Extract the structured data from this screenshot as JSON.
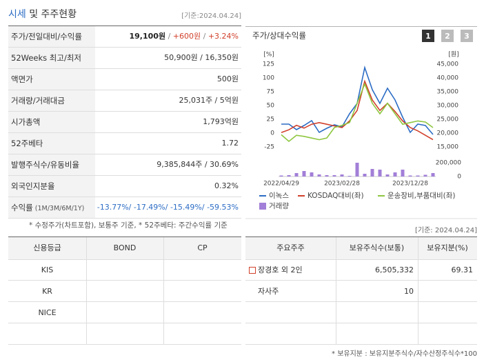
{
  "header": {
    "title_highlight": "시세",
    "title_rest": "및 주주현황",
    "date": "[기준:2024.04.24]"
  },
  "price_table": {
    "rows": [
      {
        "label": "주가/전일대비/수익률",
        "value_parts": [
          "19,100원",
          " / ",
          "+600원",
          " / ",
          "+3.24%"
        ]
      },
      {
        "label": "52Weeks 최고/최저",
        "value": "50,900원 / 16,350원"
      },
      {
        "label": "액면가",
        "value": "500원"
      },
      {
        "label": "거래량/거래대금",
        "value": "25,031주 / 5억원"
      },
      {
        "label": "시가총액",
        "value": "1,793억원"
      },
      {
        "label": "52주베타",
        "value": "1.72"
      },
      {
        "label": "발행주식수/유동비율",
        "value": "9,385,844주 / 30.69%"
      },
      {
        "label": "외국인지분율",
        "value": "0.32%"
      },
      {
        "label": "수익률",
        "sublabel": "(1M/3M/6M/1Y)",
        "value": "-13.77%/ -17.49%/ -15.49%/ -59.53%"
      }
    ],
    "note": "* 수정주가(차트포함), 보통주 기준, * 52주베타: 주간수익률 기준"
  },
  "chart_panel": {
    "title": "주가/상대수익률",
    "buttons": [
      "1",
      "2",
      "3"
    ]
  },
  "chart_data": {
    "type": "line",
    "y_label": "[%]",
    "y2_label": "[원]",
    "categories": [
      "2022/04/29",
      null,
      null,
      null,
      null,
      null,
      null,
      null,
      "2023/02/28",
      null,
      null,
      null,
      null,
      null,
      null,
      null,
      null,
      "2023/12/28",
      null,
      null,
      null
    ],
    "ylim": [
      -25,
      125
    ],
    "yticks": [
      -25,
      0,
      25,
      50,
      75,
      100,
      125
    ],
    "y2lim": [
      15000,
      45000
    ],
    "y2ticks": [
      {
        "value": 15000,
        "label": "15,000"
      },
      {
        "value": 20000,
        "label": "20,000"
      },
      {
        "value": 25000,
        "label": "25,000"
      },
      {
        "value": 30000,
        "label": "30,000"
      },
      {
        "value": 35000,
        "label": "35,000"
      },
      {
        "value": 40000,
        "label": "40,000"
      },
      {
        "value": 45000,
        "label": "45,000"
      }
    ],
    "y3lim": [
      0,
      200000
    ],
    "y3ticks": [
      0,
      {
        "value": 200000,
        "label": "200,000"
      }
    ],
    "series": [
      {
        "name": "이녹스",
        "color": "#2b6cc4",
        "axis": "y2",
        "values": [
          23250,
          23250,
          21250,
          22750,
          24500,
          20250,
          21750,
          23000,
          22250,
          27000,
          30750,
          43750,
          35750,
          30750,
          36250,
          32000,
          25750,
          20250,
          23250,
          22750,
          19500
        ]
      },
      {
        "name": "KOSDAQ대비(좌)",
        "color": "#d13f2a",
        "values": [
          1,
          6,
          14,
          9,
          16,
          19,
          16,
          13,
          10,
          22,
          41,
          94,
          60,
          41,
          54,
          39,
          22,
          10,
          4,
          -4,
          -12
        ]
      },
      {
        "name": "운송장비,부품대비(좌)",
        "color": "#8dc63f",
        "values": [
          -3,
          -15,
          -4,
          -6,
          -9,
          -12,
          -9,
          10,
          14,
          19,
          54,
          89,
          54,
          35,
          54,
          35,
          16,
          19,
          22,
          20,
          10
        ]
      },
      {
        "name": "거래량",
        "color": "#a27fd8",
        "type": "bar",
        "axis": "y3",
        "values": [
          15000,
          20000,
          50000,
          80000,
          60000,
          30000,
          20000,
          20000,
          30000,
          10000,
          200000,
          40000,
          110000,
          100000,
          30000,
          60000,
          100000,
          15000,
          15000,
          25000,
          50000
        ]
      }
    ]
  },
  "date2": "[기준: 2024.04.24]",
  "credit_table": {
    "headers": [
      "신용등급",
      "BOND",
      "CP"
    ],
    "rows": [
      [
        "KIS"
      ],
      [
        "KR"
      ],
      [
        "NICE"
      ]
    ]
  },
  "holders_table": {
    "headers": [
      "주요주주",
      "보유주식수(보통)",
      "보유지분(%)"
    ],
    "rows": [
      [
        "장경호 외 2인",
        "6,505,332",
        "69.31"
      ],
      [
        "자사주",
        "10"
      ]
    ],
    "note": "* 보유지분 : 보유지분주식수/자수산정주식수*100"
  }
}
